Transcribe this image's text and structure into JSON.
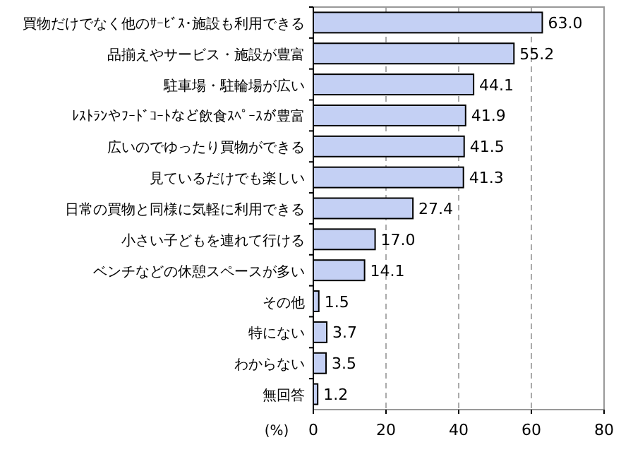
{
  "chart_data": {
    "type": "bar",
    "orientation": "horizontal",
    "xlabel": "(%)",
    "categories": [
      "買物だけでなく他のｻｰﾋﾞｽ･施設も利用できる",
      "品揃えやサービス・施設が豊富",
      "駐車場・駐輪場が広い",
      "ﾚｽﾄﾗﾝやﾌｰﾄﾞｺｰﾄなど飲食ｽﾍﾟｰｽが豊富",
      "広いのでゆったり買物ができる",
      "見ているだけでも楽しい",
      "日常の買物と同様に気軽に利用できる",
      "小さい子どもを連れて行ける",
      "ベンチなどの休憩スペースが多い",
      "その他",
      "特にない",
      "わからない",
      "無回答"
    ],
    "values": [
      63.0,
      55.2,
      44.1,
      41.9,
      41.5,
      41.3,
      27.4,
      17.0,
      14.1,
      1.5,
      3.7,
      3.5,
      1.2
    ],
    "value_labels": [
      "63.0",
      "55.2",
      "44.1",
      "41.9",
      "41.5",
      "41.3",
      "27.4",
      "17.0",
      "14.1",
      "1.5",
      "3.7",
      "3.5",
      "1.2"
    ],
    "color": "#c4d0f4",
    "xlim": [
      0,
      80
    ],
    "xticks": [
      0,
      20,
      40,
      60,
      80
    ],
    "grid": "x"
  }
}
